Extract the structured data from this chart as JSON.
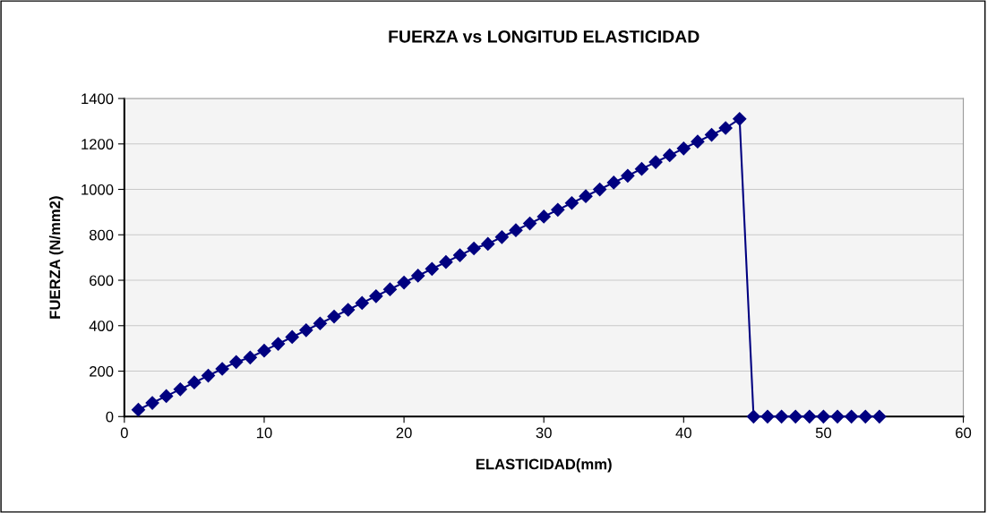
{
  "chart_data": {
    "type": "line",
    "title": "FUERZA vs LONGITUD ELASTICIDAD",
    "xlabel": "ELASTICIDAD(mm)",
    "ylabel": "FUERZA (N/mm2)",
    "x": [
      1,
      2,
      3,
      4,
      5,
      6,
      7,
      8,
      9,
      10,
      11,
      12,
      13,
      14,
      15,
      16,
      17,
      18,
      19,
      20,
      21,
      22,
      23,
      24,
      25,
      26,
      27,
      28,
      29,
      30,
      31,
      32,
      33,
      34,
      35,
      36,
      37,
      38,
      39,
      40,
      41,
      42,
      43,
      44,
      45,
      46,
      47,
      48,
      49,
      50,
      51,
      52,
      53,
      54
    ],
    "series": [
      {
        "color": "#000080",
        "values": [
          30,
          60,
          90,
          120,
          150,
          180,
          210,
          240,
          260,
          290,
          320,
          350,
          380,
          410,
          440,
          470,
          500,
          530,
          560,
          590,
          620,
          650,
          680,
          710,
          740,
          760,
          790,
          820,
          850,
          880,
          910,
          940,
          970,
          1000,
          1030,
          1060,
          1090,
          1120,
          1150,
          1180,
          1210,
          1240,
          1270,
          1310,
          0,
          0,
          0,
          0,
          0,
          0,
          0,
          0,
          0,
          0
        ]
      }
    ],
    "xlim": [
      0,
      60
    ],
    "xticks": [
      0,
      10,
      20,
      30,
      40,
      50,
      60
    ],
    "ylim": [
      0,
      1400
    ],
    "yticks": [
      0,
      200,
      400,
      600,
      800,
      1000,
      1200,
      1400
    ],
    "grid": "y",
    "marker": "diamond",
    "line_style": "solid"
  }
}
